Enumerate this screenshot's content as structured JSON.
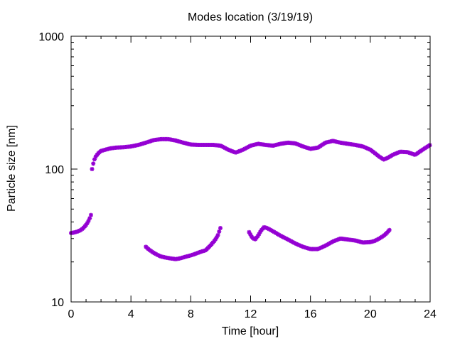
{
  "chart_data": {
    "type": "scatter",
    "title": "Modes location (3/19/19)",
    "xlabel": "Time [hour]",
    "ylabel": "Particle size [nm]",
    "xlim": [
      0,
      24
    ],
    "ylim": [
      10,
      1000
    ],
    "yscale": "log",
    "grid": false,
    "legend": "none",
    "xticks": [
      0,
      4,
      8,
      12,
      16,
      20,
      24
    ],
    "xtick_labels": [
      "0",
      "4",
      "8",
      "12",
      "16",
      "20",
      "24"
    ],
    "yticks": [
      10,
      100,
      1000
    ],
    "ytick_labels": [
      "10",
      "100",
      "1000"
    ],
    "marker": "star",
    "colors": {
      "points": "#9400d3",
      "axes": "#000000",
      "background": "#ffffff"
    },
    "series": [
      {
        "x": [
          1.4,
          1.5,
          1.6,
          1.8,
          2.0,
          2.3,
          2.6,
          3.0,
          3.5,
          4.0,
          4.5,
          5.0,
          5.5,
          6.0,
          6.5,
          7.0,
          7.5,
          8.0,
          8.5,
          9.0,
          9.5,
          10.0,
          10.5,
          11.0,
          11.5,
          12.0,
          12.5,
          13.0,
          13.5,
          14.0,
          14.5,
          15.0,
          15.5,
          16.0,
          16.5,
          17.0,
          17.5,
          18.0,
          18.5,
          19.0,
          19.5,
          20.0,
          20.3,
          20.6,
          20.9,
          21.2,
          21.5,
          22.0,
          22.5,
          23.0,
          23.5,
          24.0
        ],
        "y": [
          100,
          112,
          122,
          131,
          137,
          140,
          143,
          145,
          146,
          148,
          152,
          158,
          165,
          168,
          168,
          164,
          158,
          153,
          152,
          152,
          152,
          150,
          140,
          133,
          140,
          150,
          155,
          152,
          150,
          155,
          158,
          156,
          148,
          142,
          145,
          158,
          163,
          158,
          155,
          152,
          148,
          140,
          132,
          124,
          118,
          122,
          128,
          135,
          134,
          128,
          140,
          152
        ]
      },
      {
        "x": [
          0.0,
          0.2,
          0.4,
          0.6,
          0.8,
          1.0,
          1.1,
          1.2,
          1.3,
          1.4
        ],
        "y": [
          33,
          33.3,
          33.8,
          34.5,
          35.8,
          38,
          39.5,
          41.5,
          44,
          48
        ]
      },
      {
        "x": [
          5.0,
          5.2,
          5.5,
          5.8,
          6.0,
          6.3,
          6.6,
          7.0,
          7.3,
          7.6,
          8.0,
          8.3,
          8.6,
          9.0,
          9.3,
          9.6,
          9.8,
          10.0
        ],
        "y": [
          26,
          24.8,
          23.5,
          22.5,
          22,
          21.6,
          21.3,
          21,
          21.3,
          21.8,
          22.4,
          23,
          23.7,
          24.5,
          26.5,
          29,
          31.5,
          36.5
        ]
      },
      {
        "x": [
          11.9,
          12.1,
          12.3,
          12.5,
          12.7,
          12.9,
          13.1,
          13.5,
          14.0,
          14.5,
          15.0,
          15.5,
          16.0,
          16.5,
          17.0,
          17.5,
          18.0,
          18.5,
          19.0,
          19.5,
          20.0,
          20.3,
          20.6,
          20.9,
          21.1,
          21.3
        ],
        "y": [
          33.5,
          30.5,
          29.5,
          31.5,
          34.5,
          36.5,
          36,
          34,
          31.5,
          29.5,
          27.5,
          26,
          25,
          25,
          26.5,
          28.5,
          30,
          29.5,
          29,
          28,
          28.2,
          28.8,
          30,
          31.5,
          33,
          35
        ]
      }
    ]
  }
}
